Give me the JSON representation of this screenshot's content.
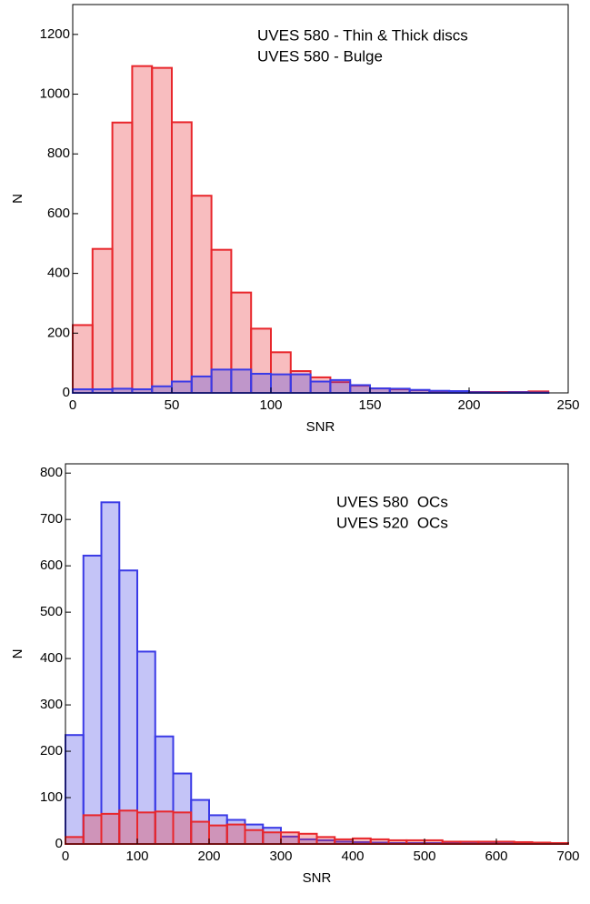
{
  "chart_data": [
    {
      "type": "histogram",
      "xlabel": "SNR",
      "ylabel": "N",
      "bins": [
        0,
        10,
        20,
        30,
        40,
        50,
        60,
        70,
        80,
        90,
        100,
        110,
        120,
        130,
        140,
        150,
        160,
        170,
        180,
        190,
        200,
        210,
        220,
        230,
        240,
        250
      ],
      "xlim": [
        0,
        250
      ],
      "xticks": [
        0,
        50,
        100,
        150,
        200,
        250
      ],
      "ylim": [
        0,
        1300
      ],
      "yticks": [
        0,
        200,
        400,
        600,
        800,
        1000,
        1200
      ],
      "legend": "upper right",
      "series": [
        {
          "name": "UVES 580 - Thin & Thick discs",
          "color": "#e8262b",
          "values": [
            227,
            482,
            905,
            1094,
            1088,
            906,
            660,
            479,
            336,
            215,
            136,
            73,
            52,
            36,
            24,
            15,
            12,
            9,
            6,
            5,
            3,
            3,
            3,
            5,
            0
          ]
        },
        {
          "name": "UVES 580 - Bulge",
          "color": "#3a3ae6",
          "values": [
            12,
            12,
            14,
            12,
            22,
            38,
            55,
            78,
            78,
            64,
            62,
            62,
            38,
            43,
            26,
            15,
            14,
            10,
            7,
            6,
            2,
            1,
            2,
            1,
            0
          ]
        }
      ]
    },
    {
      "type": "histogram",
      "xlabel": "SNR",
      "ylabel": "N",
      "bins": [
        0,
        25,
        50,
        75,
        100,
        125,
        150,
        175,
        200,
        225,
        250,
        275,
        300,
        325,
        350,
        375,
        400,
        425,
        450,
        475,
        500,
        525,
        550,
        575,
        600,
        625,
        650,
        675,
        700
      ],
      "xlim": [
        0,
        700
      ],
      "xticks": [
        0,
        100,
        200,
        300,
        400,
        500,
        600,
        700
      ],
      "ylim": [
        0,
        820
      ],
      "yticks": [
        0,
        100,
        200,
        300,
        400,
        500,
        600,
        700,
        800
      ],
      "legend": "upper right",
      "series": [
        {
          "name": "UVES 580  OCs",
          "color": "#3a3ae6",
          "values": [
            235,
            622,
            737,
            590,
            415,
            232,
            152,
            95,
            62,
            52,
            42,
            35,
            16,
            10,
            8,
            5,
            4,
            3,
            2,
            2,
            2,
            2,
            1,
            1,
            1,
            1,
            0,
            0
          ]
        },
        {
          "name": "UVES 520  OCs",
          "color": "#e8262b",
          "values": [
            15,
            62,
            65,
            72,
            68,
            70,
            68,
            48,
            40,
            42,
            30,
            25,
            25,
            22,
            15,
            10,
            12,
            10,
            8,
            8,
            8,
            5,
            5,
            5,
            5,
            4,
            3,
            2
          ]
        }
      ]
    }
  ]
}
